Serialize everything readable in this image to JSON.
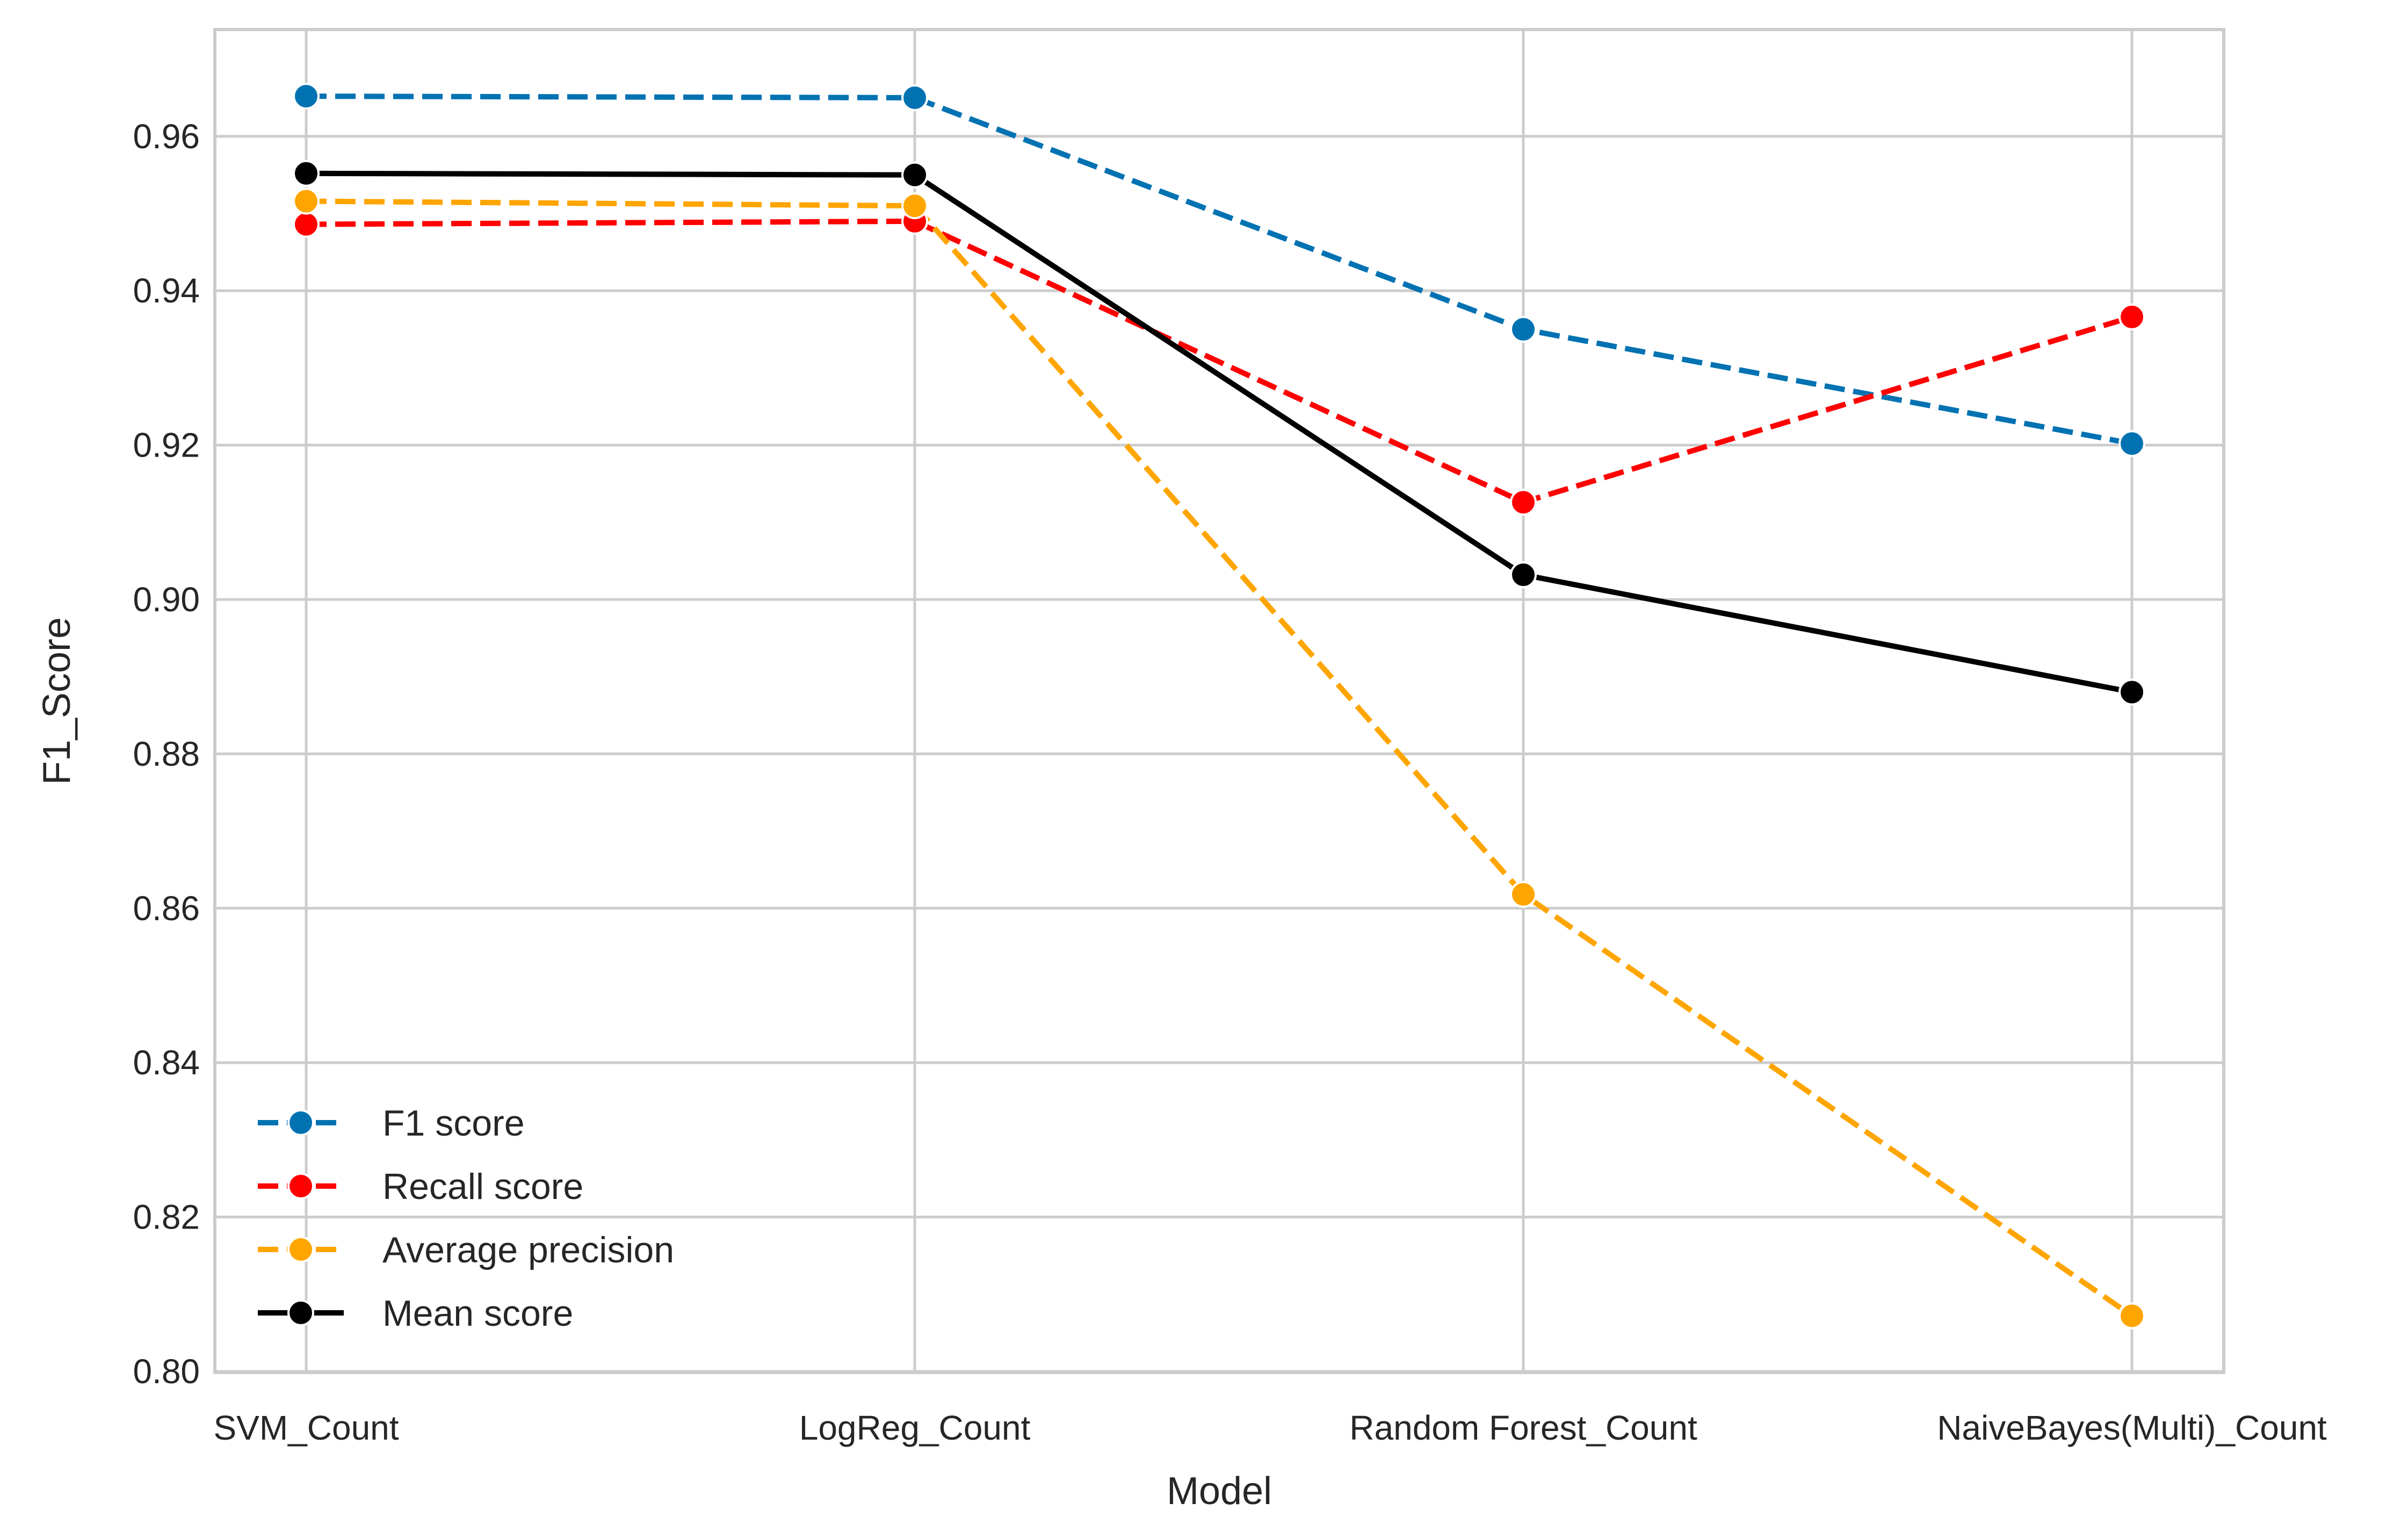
{
  "chart_data": {
    "type": "line",
    "categories": [
      "SVM_Count",
      "LogReg_Count",
      "Random Forest_Count",
      "NaiveBayes(Multi)_Count"
    ],
    "series": [
      {
        "name": "F1 score",
        "values": [
          0.9652,
          0.965,
          0.935,
          0.9202
        ],
        "color": "#0072b2",
        "dashed": true
      },
      {
        "name": "Recall score",
        "values": [
          0.9486,
          0.949,
          0.9126,
          0.9366
        ],
        "color": "#ff0000",
        "dashed": true
      },
      {
        "name": "Average precision",
        "values": [
          0.9516,
          0.951,
          0.8618,
          0.8072
        ],
        "color": "#ffa500",
        "dashed": true
      },
      {
        "name": "Mean score",
        "values": [
          0.9552,
          0.955,
          0.9032,
          0.888
        ],
        "color": "#000000",
        "dashed": false
      }
    ],
    "xlabel": "Model",
    "ylabel": "F1_Score",
    "ylim": [
      0.8,
      0.973
    ],
    "yticks": [
      "0.80",
      "0.82",
      "0.84",
      "0.86",
      "0.88",
      "0.90",
      "0.92",
      "0.94",
      "0.96"
    ],
    "grid": true,
    "legend": "lower-left"
  }
}
